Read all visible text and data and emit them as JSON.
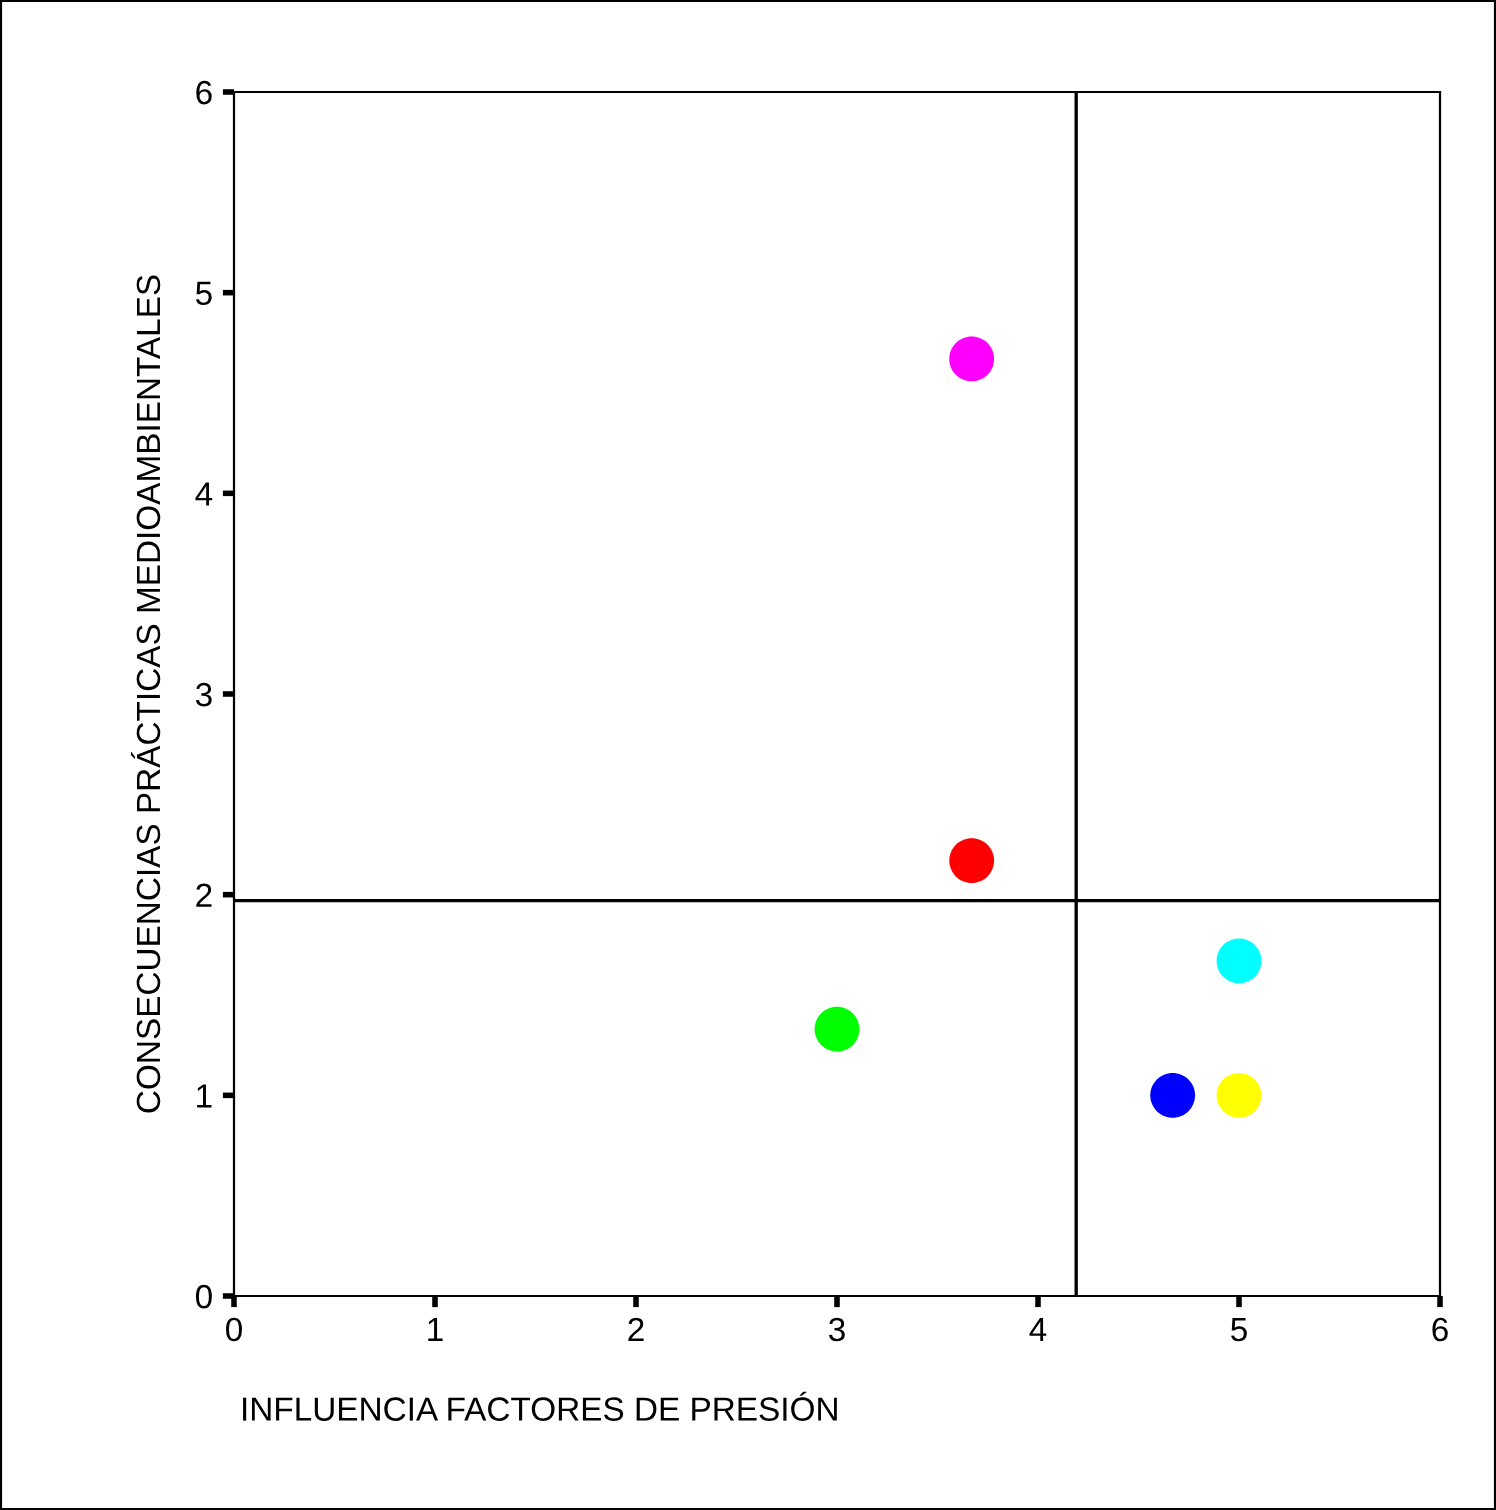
{
  "chart_data": {
    "type": "scatter",
    "xlabel": "INFLUENCIA FACTORES DE PRESIÓN",
    "ylabel": "CONSECUENCIAS PRÁCTICAS MEDIOAMBIENTALES",
    "x": [
      3.67,
      3.67,
      3.0,
      5.0,
      4.67,
      5.0
    ],
    "values": [
      4.67,
      2.17,
      1.33,
      1.67,
      1.0,
      1.0
    ],
    "colors": [
      "#ff00ff",
      "#ff0000",
      "#00ff00",
      "#00ffff",
      "#0000ff",
      "#ffff00"
    ],
    "xlim": [
      0,
      6
    ],
    "ylim": [
      0,
      6
    ],
    "xticks": [
      0,
      1,
      2,
      3,
      4,
      5,
      6
    ],
    "yticks": [
      0,
      1,
      2,
      3,
      4,
      5,
      6
    ],
    "ref_lines": [
      {
        "axis": "x",
        "value": 4.19,
        "color": "#000000"
      },
      {
        "axis": "y",
        "value": 1.97,
        "color": "#000000"
      }
    ],
    "marker": "circle",
    "grid": false,
    "legend": false
  }
}
